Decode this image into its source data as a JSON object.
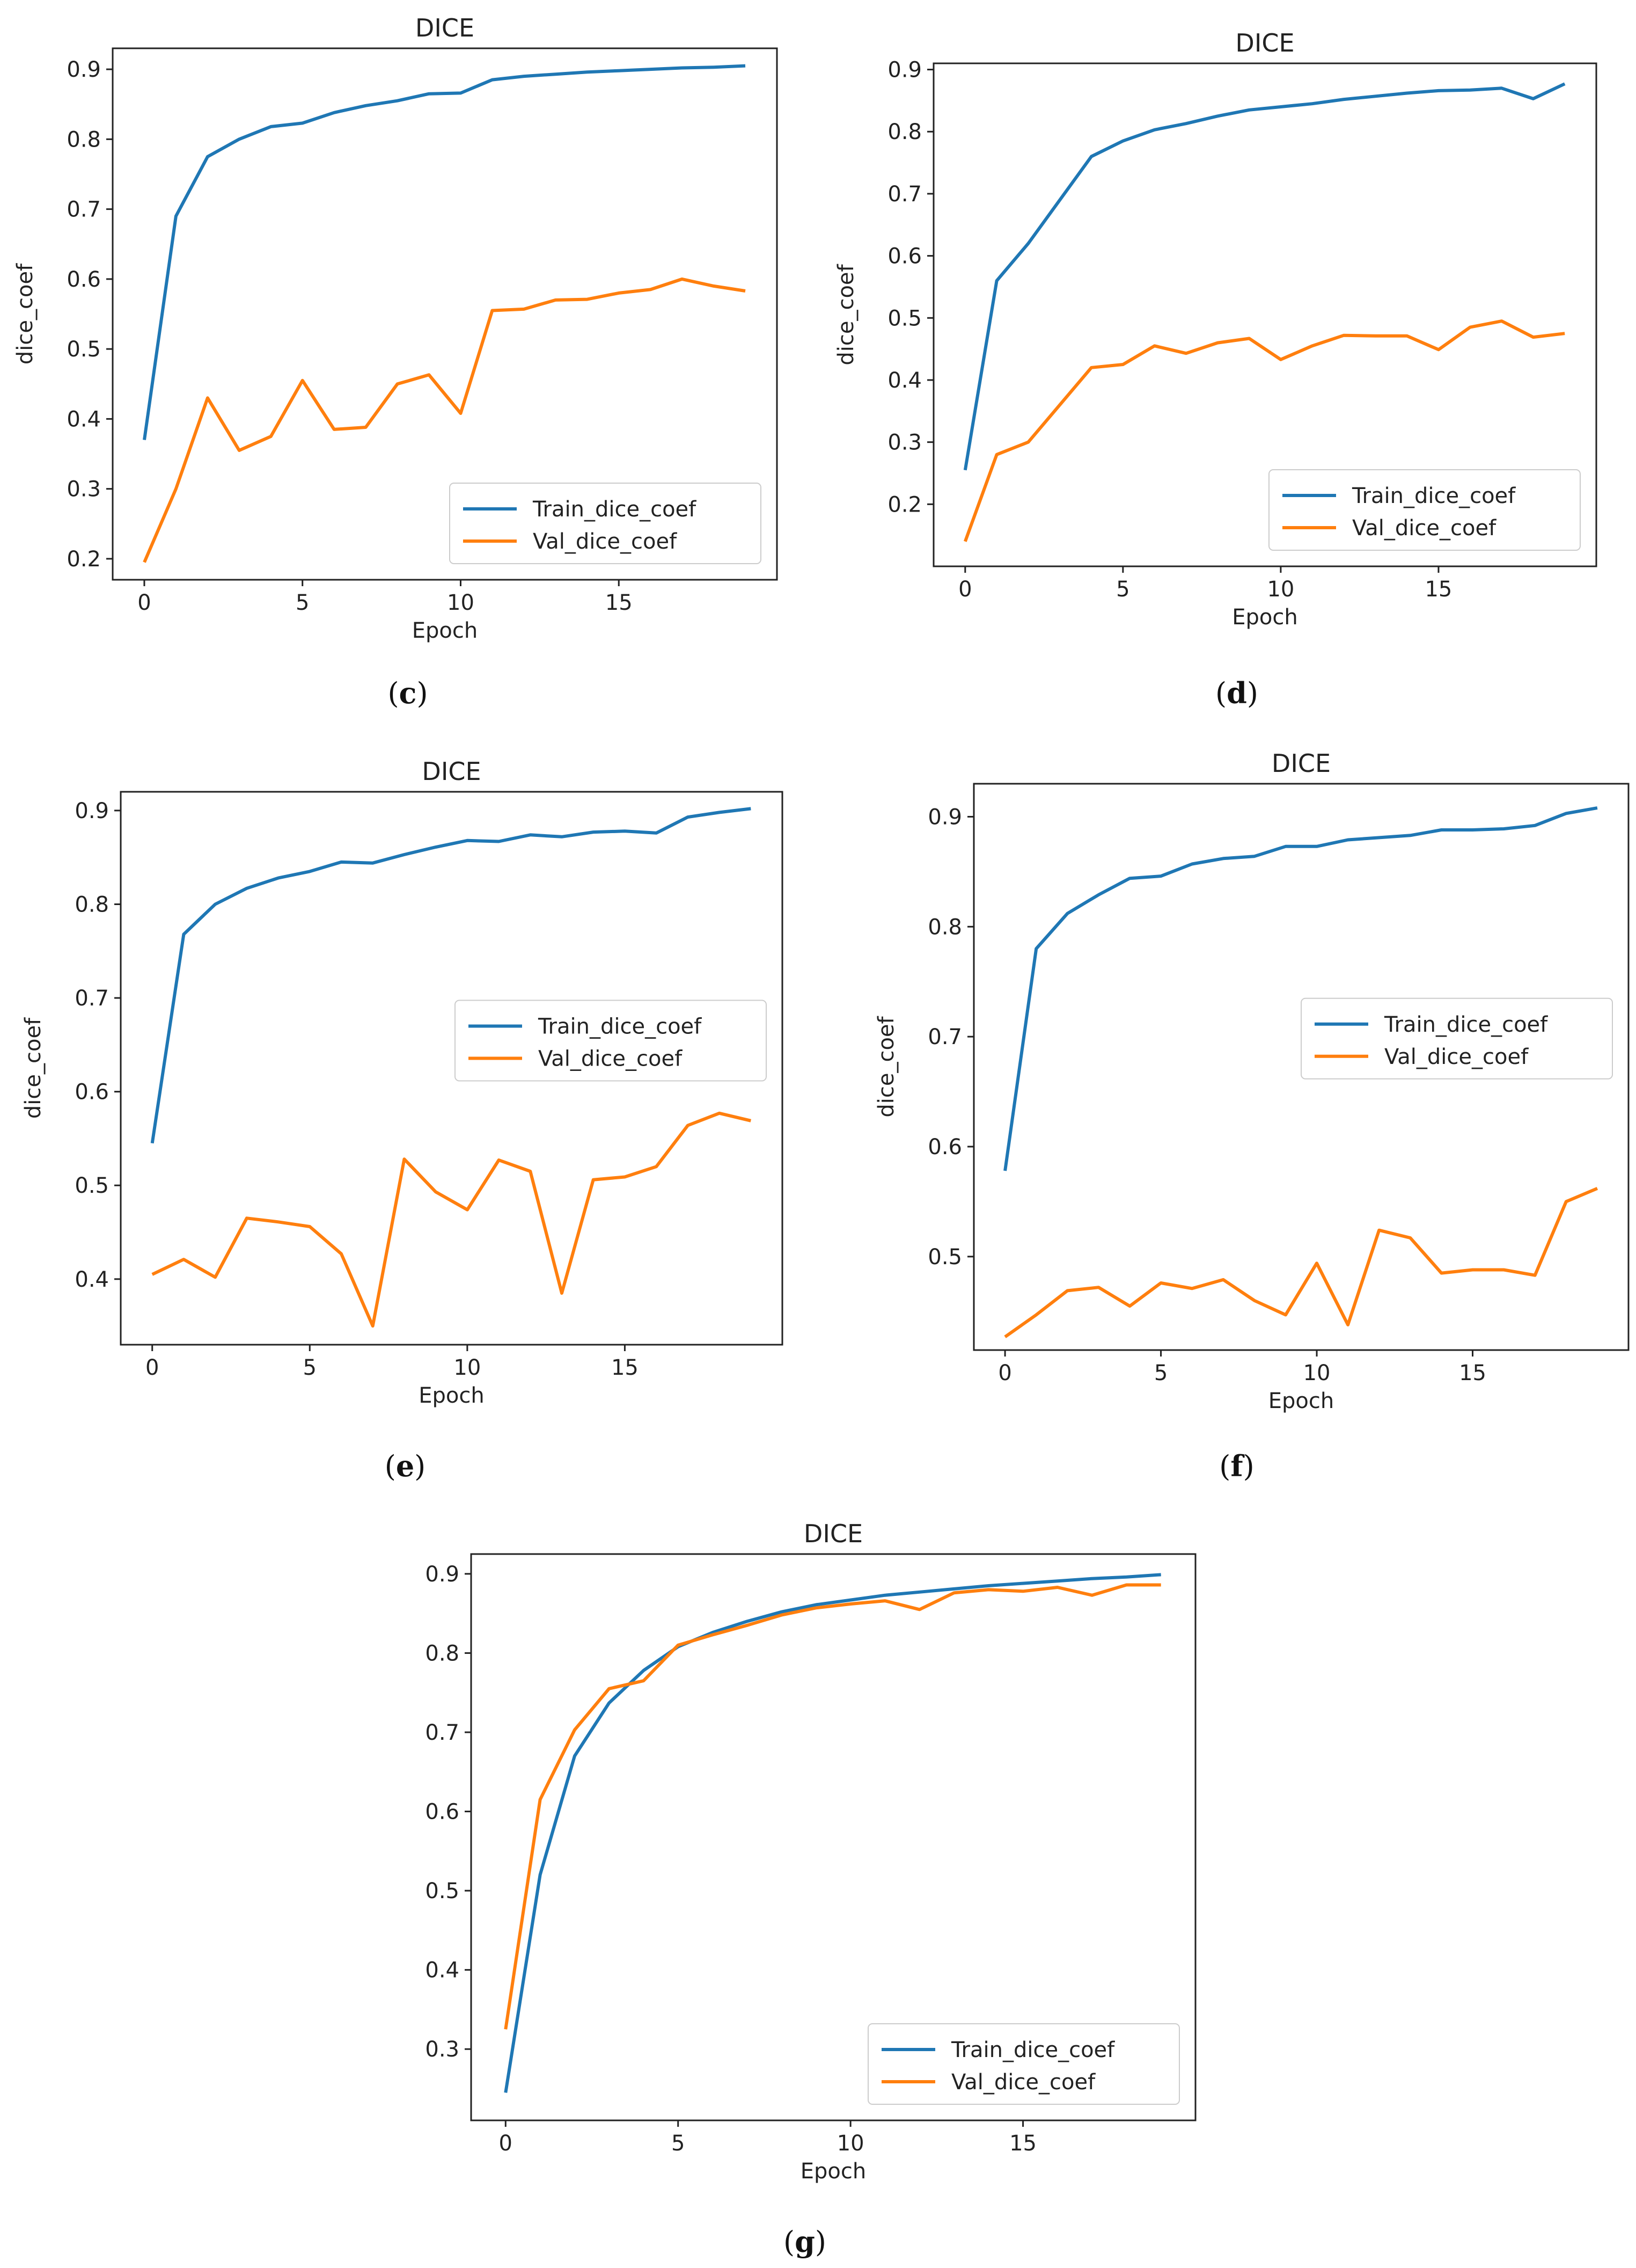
{
  "chart_data": [
    {
      "id": "c",
      "caption_letter": "c",
      "type": "line",
      "title": "DICE",
      "xlabel": "Epoch",
      "ylabel": "dice_coef",
      "xlim": [
        -1,
        20
      ],
      "ylim": [
        0.17,
        0.93
      ],
      "xticks": [
        0,
        5,
        10,
        15
      ],
      "yticks": [
        0.2,
        0.3,
        0.4,
        0.5,
        0.6,
        0.7,
        0.8,
        0.9
      ],
      "x": [
        0,
        1,
        2,
        3,
        4,
        5,
        6,
        7,
        8,
        9,
        10,
        11,
        12,
        13,
        14,
        15,
        16,
        17,
        18,
        19
      ],
      "legend_position": "lower-right",
      "series": [
        {
          "name": "Train_dice_coef",
          "color": "#1f77b4",
          "values": [
            0.37,
            0.69,
            0.775,
            0.8,
            0.818,
            0.823,
            0.838,
            0.848,
            0.855,
            0.865,
            0.866,
            0.885,
            0.89,
            0.893,
            0.896,
            0.898,
            0.9,
            0.902,
            0.903,
            0.905
          ]
        },
        {
          "name": "Val_dice_coef",
          "color": "#ff7f0e",
          "values": [
            0.195,
            0.3,
            0.43,
            0.355,
            0.375,
            0.455,
            0.385,
            0.388,
            0.45,
            0.463,
            0.408,
            0.555,
            0.557,
            0.57,
            0.571,
            0.58,
            0.585,
            0.6,
            0.59,
            0.583
          ]
        }
      ]
    },
    {
      "id": "d",
      "caption_letter": "d",
      "type": "line",
      "title": "DICE",
      "xlabel": "Epoch",
      "ylabel": "dice_coef",
      "xlim": [
        -1,
        20
      ],
      "ylim": [
        0.1,
        0.91
      ],
      "xticks": [
        0,
        5,
        10,
        15
      ],
      "yticks": [
        0.2,
        0.3,
        0.4,
        0.5,
        0.6,
        0.7,
        0.8,
        0.9
      ],
      "x": [
        0,
        1,
        2,
        3,
        4,
        5,
        6,
        7,
        8,
        9,
        10,
        11,
        12,
        13,
        14,
        15,
        16,
        17,
        18,
        19
      ],
      "legend_position": "lower-right",
      "series": [
        {
          "name": "Train_dice_coef",
          "color": "#1f77b4",
          "values": [
            0.255,
            0.56,
            0.62,
            0.69,
            0.76,
            0.785,
            0.803,
            0.813,
            0.825,
            0.835,
            0.84,
            0.845,
            0.852,
            0.857,
            0.862,
            0.866,
            0.867,
            0.87,
            0.853,
            0.877
          ]
        },
        {
          "name": "Val_dice_coef",
          "color": "#ff7f0e",
          "values": [
            0.14,
            0.28,
            0.3,
            0.36,
            0.42,
            0.425,
            0.455,
            0.443,
            0.46,
            0.467,
            0.433,
            0.455,
            0.472,
            0.471,
            0.471,
            0.449,
            0.485,
            0.495,
            0.469,
            0.475
          ]
        }
      ]
    },
    {
      "id": "e",
      "caption_letter": "e",
      "type": "line",
      "title": "DICE",
      "xlabel": "Epoch",
      "ylabel": "dice_coef",
      "xlim": [
        -1,
        20
      ],
      "ylim": [
        0.33,
        0.92
      ],
      "xticks": [
        0,
        5,
        10,
        15
      ],
      "yticks": [
        0.4,
        0.5,
        0.6,
        0.7,
        0.8,
        0.9
      ],
      "x": [
        0,
        1,
        2,
        3,
        4,
        5,
        6,
        7,
        8,
        9,
        10,
        11,
        12,
        13,
        14,
        15,
        16,
        17,
        18,
        19
      ],
      "legend_position": "center-right",
      "series": [
        {
          "name": "Train_dice_coef",
          "color": "#1f77b4",
          "values": [
            0.545,
            0.768,
            0.8,
            0.817,
            0.828,
            0.835,
            0.845,
            0.844,
            0.853,
            0.861,
            0.868,
            0.867,
            0.874,
            0.872,
            0.877,
            0.878,
            0.876,
            0.893,
            0.898,
            0.902
          ]
        },
        {
          "name": "Val_dice_coef",
          "color": "#ff7f0e",
          "values": [
            0.405,
            0.421,
            0.402,
            0.465,
            0.461,
            0.456,
            0.427,
            0.35,
            0.528,
            0.493,
            0.474,
            0.527,
            0.515,
            0.385,
            0.506,
            0.509,
            0.52,
            0.564,
            0.577,
            0.569
          ]
        }
      ]
    },
    {
      "id": "f",
      "caption_letter": "f",
      "type": "line",
      "title": "DICE",
      "xlabel": "Epoch",
      "ylabel": "dice_coef",
      "xlim": [
        -1,
        20
      ],
      "ylim": [
        0.415,
        0.93
      ],
      "xticks": [
        0,
        5,
        10,
        15
      ],
      "yticks": [
        0.5,
        0.6,
        0.7,
        0.8,
        0.9
      ],
      "x": [
        0,
        1,
        2,
        3,
        4,
        5,
        6,
        7,
        8,
        9,
        10,
        11,
        12,
        13,
        14,
        15,
        16,
        17,
        18,
        19
      ],
      "legend_position": "center-right",
      "series": [
        {
          "name": "Train_dice_coef",
          "color": "#1f77b4",
          "values": [
            0.578,
            0.78,
            0.812,
            0.829,
            0.844,
            0.846,
            0.857,
            0.862,
            0.864,
            0.873,
            0.873,
            0.879,
            0.881,
            0.883,
            0.888,
            0.888,
            0.889,
            0.892,
            0.903,
            0.908
          ]
        },
        {
          "name": "Val_dice_coef",
          "color": "#ff7f0e",
          "values": [
            0.427,
            0.447,
            0.469,
            0.472,
            0.455,
            0.476,
            0.471,
            0.479,
            0.46,
            0.447,
            0.494,
            0.438,
            0.524,
            0.517,
            0.485,
            0.488,
            0.488,
            0.483,
            0.55,
            0.562
          ]
        }
      ]
    },
    {
      "id": "g",
      "caption_letter": "g",
      "type": "line",
      "title": "DICE",
      "xlabel": "Epoch",
      "ylabel": "",
      "xlim": [
        -1,
        20
      ],
      "ylim": [
        0.21,
        0.925
      ],
      "xticks": [
        0,
        5,
        10,
        15
      ],
      "yticks": [
        0.3,
        0.4,
        0.5,
        0.6,
        0.7,
        0.8,
        0.9
      ],
      "x": [
        0,
        1,
        2,
        3,
        4,
        5,
        6,
        7,
        8,
        9,
        10,
        11,
        12,
        13,
        14,
        15,
        16,
        17,
        18,
        19
      ],
      "legend_position": "lower-right",
      "series": [
        {
          "name": "Train_dice_coef",
          "color": "#1f77b4",
          "values": [
            0.245,
            0.52,
            0.67,
            0.737,
            0.778,
            0.808,
            0.826,
            0.84,
            0.852,
            0.861,
            0.867,
            0.873,
            0.877,
            0.881,
            0.885,
            0.888,
            0.891,
            0.894,
            0.896,
            0.899
          ]
        },
        {
          "name": "Val_dice_coef",
          "color": "#ff7f0e",
          "values": [
            0.325,
            0.615,
            0.703,
            0.755,
            0.765,
            0.81,
            0.823,
            0.835,
            0.848,
            0.857,
            0.862,
            0.866,
            0.855,
            0.876,
            0.88,
            0.878,
            0.883,
            0.873,
            0.886,
            0.886
          ]
        }
      ]
    }
  ]
}
